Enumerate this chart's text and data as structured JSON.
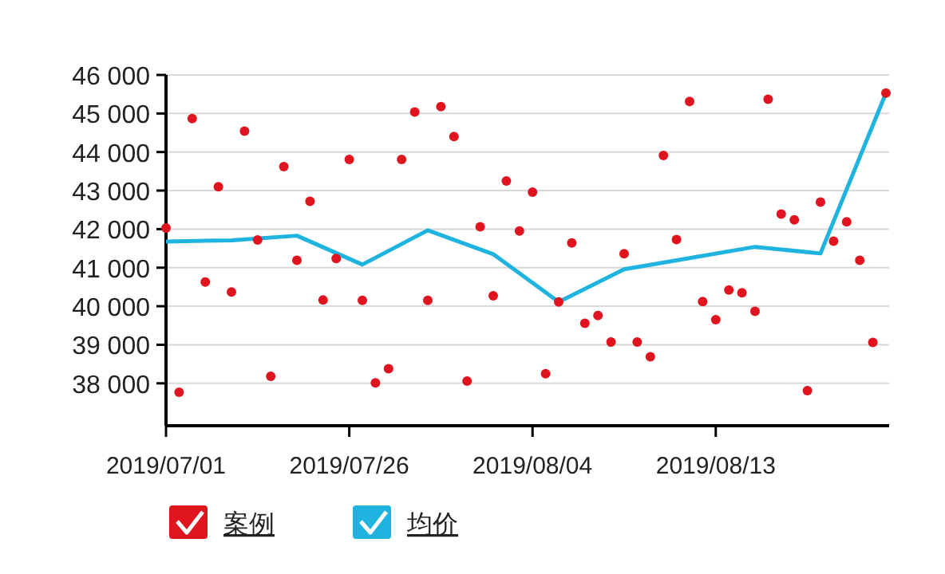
{
  "chart_data": {
    "type": "scatter",
    "categories": [
      "2019/07/01",
      null,
      null,
      null,
      null,
      null,
      null,
      null,
      null,
      null,
      null,
      null,
      null,
      null,
      "2019/07/26",
      null,
      null,
      null,
      null,
      null,
      null,
      null,
      null,
      null,
      null,
      null,
      null,
      null,
      "2019/08/04",
      null,
      null,
      null,
      null,
      null,
      null,
      null,
      null,
      null,
      null,
      null,
      null,
      null,
      "2019/08/13",
      null,
      null,
      null,
      null,
      null,
      null,
      null,
      null,
      null,
      null,
      null,
      null,
      null
    ],
    "ylim": [
      36900,
      46000
    ],
    "yticks": [
      {
        "value": 38000,
        "label": "38 000"
      },
      {
        "value": 39000,
        "label": "39 000"
      },
      {
        "value": 40000,
        "label": "40 000"
      },
      {
        "value": 41000,
        "label": "41 000"
      },
      {
        "value": 42000,
        "label": "42 000"
      },
      {
        "value": 43000,
        "label": "43 000"
      },
      {
        "value": 44000,
        "label": "44 000"
      },
      {
        "value": 45000,
        "label": "45 000"
      },
      {
        "value": 46000,
        "label": "46 000"
      }
    ],
    "grid": "y",
    "legend": "bottom",
    "series": [
      {
        "name": "案例",
        "marker": "circle",
        "color": "#e0141e",
        "values": [
          42030,
          37770,
          44870,
          40630,
          43100,
          40370,
          44540,
          41720,
          38180,
          43620,
          41190,
          42720,
          40160,
          41240,
          43810,
          40150,
          38010,
          38380,
          43810,
          45040,
          40150,
          45180,
          44400,
          38060,
          42060,
          40270,
          43250,
          41950,
          42960,
          38250,
          40110,
          41640,
          39560,
          39760,
          39070,
          41360,
          39070,
          38690,
          43910,
          41730,
          45310,
          40120,
          39650,
          40420,
          40350,
          39870,
          45370,
          42390,
          42240,
          37810,
          42700,
          41690,
          42190,
          41190,
          39060,
          45530
        ]
      },
      {
        "name": "均价",
        "type": "line",
        "marker": "none",
        "color": "#1fb3e0",
        "values": [
          41680,
          null,
          null,
          null,
          null,
          41710,
          null,
          null,
          null,
          null,
          41830,
          null,
          null,
          null,
          null,
          41080,
          null,
          null,
          null,
          null,
          41970,
          null,
          null,
          null,
          null,
          41350,
          null,
          null,
          null,
          null,
          40110,
          null,
          null,
          null,
          null,
          40960,
          null,
          null,
          null,
          null,
          41250,
          null,
          null,
          null,
          null,
          41540,
          null,
          null,
          null,
          null,
          41370,
          null,
          null,
          null,
          null,
          45530
        ]
      }
    ]
  }
}
